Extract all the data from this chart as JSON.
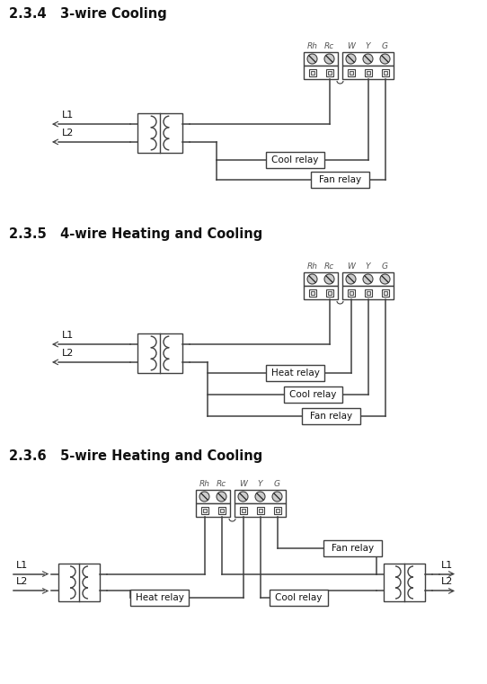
{
  "title1": "2.3.4   3-wire Cooling",
  "title2": "2.3.5   4-wire Heating and Cooling",
  "title3": "2.3.6   5-wire Heating and Cooling",
  "bg_color": "#ffffff",
  "line_color": "#404040",
  "terminal_labels": [
    "Rh",
    "Rc",
    "W",
    "Y",
    "G"
  ]
}
